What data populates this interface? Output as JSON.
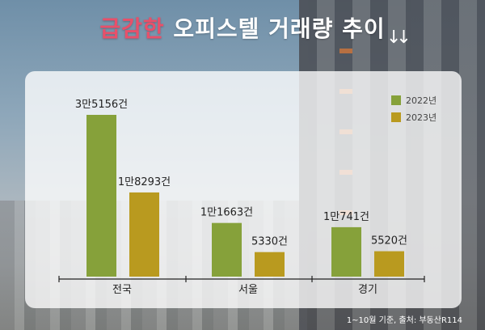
{
  "title": {
    "highlight": "급감한",
    "rest": "오피스텔 거래량 추이"
  },
  "arrows": "↓↓",
  "source": "1~10월 기준, 출처: 부동산R114",
  "colors": {
    "s2022": "#86a13a",
    "s2023": "#b99a1f",
    "highlight": "#e8506a"
  },
  "chart_data": {
    "type": "bar",
    "categories": [
      "전국",
      "서울",
      "경기"
    ],
    "series": [
      {
        "name": "2022년",
        "values": [
          35156,
          11663,
          10741
        ],
        "labels": [
          "3만5156건",
          "1만1663건",
          "1만741건"
        ]
      },
      {
        "name": "2023년",
        "values": [
          18293,
          5330,
          5520
        ],
        "labels": [
          "1만8293건",
          "5330건",
          "5520건"
        ]
      }
    ],
    "legend": "top-right",
    "grid": false
  }
}
